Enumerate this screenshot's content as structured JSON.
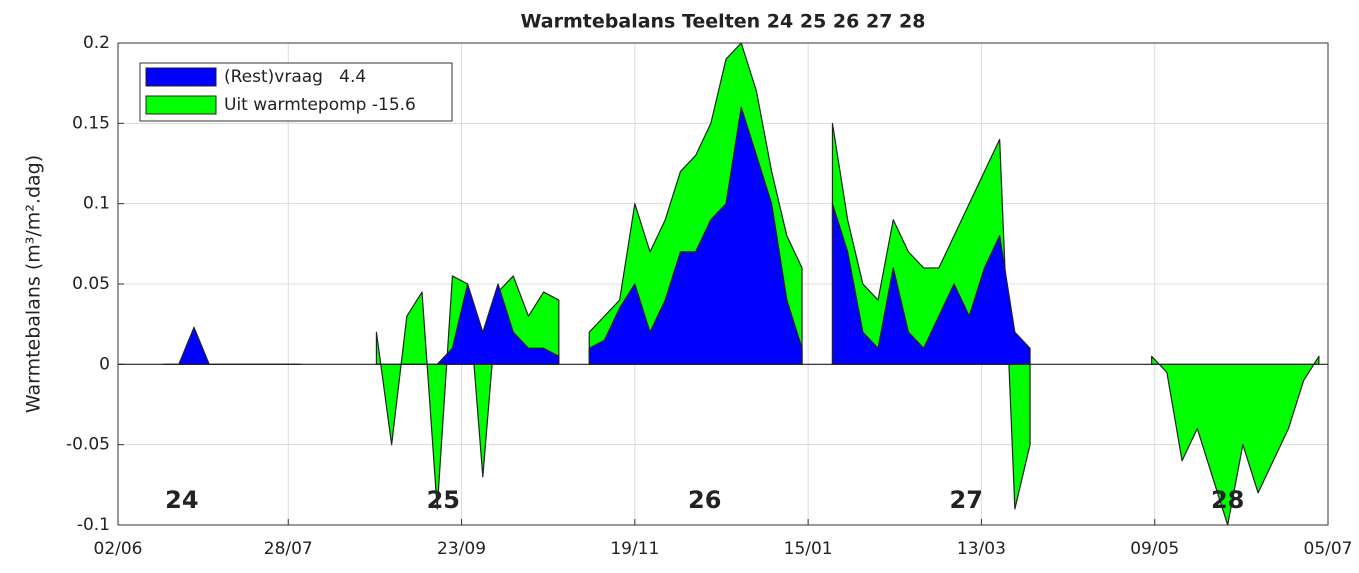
{
  "chart_data": {
    "type": "area",
    "title": "Warmtebalans Teelten 24  25  26  27  28",
    "ylabel": "Warmtebalans (m³/m².dag)",
    "xlim": [
      0,
      398
    ],
    "xticks": [
      {
        "value": 0,
        "label": "02/06"
      },
      {
        "value": 56,
        "label": "28/07"
      },
      {
        "value": 113,
        "label": "23/09"
      },
      {
        "value": 170,
        "label": "19/11"
      },
      {
        "value": 227,
        "label": "15/01"
      },
      {
        "value": 284,
        "label": "13/03"
      },
      {
        "value": 341,
        "label": "09/05"
      },
      {
        "value": 398,
        "label": "05/07"
      }
    ],
    "ylim": [
      -0.1,
      0.2
    ],
    "yticks": [
      -0.1,
      -0.05,
      0,
      0.05,
      0.1,
      0.15,
      0.2
    ],
    "grid": true,
    "legend": "upper left",
    "x": [
      0,
      5,
      10,
      15,
      20,
      25,
      30,
      35,
      40,
      45,
      50,
      55,
      60,
      65,
      70,
      75,
      80,
      85,
      90,
      95,
      100,
      105,
      110,
      115,
      120,
      125,
      130,
      135,
      140,
      145,
      150,
      155,
      160,
      165,
      170,
      175,
      180,
      185,
      190,
      195,
      200,
      205,
      210,
      215,
      220,
      225,
      230,
      235,
      240,
      245,
      250,
      255,
      260,
      265,
      270,
      275,
      280,
      285,
      290,
      295,
      300,
      305,
      310,
      315,
      320,
      325,
      330,
      335,
      340,
      345,
      350,
      355,
      360,
      365,
      370,
      375,
      380,
      385,
      390,
      395
    ],
    "series": [
      {
        "name": "Uit warmtepomp -15.6",
        "color": "#00ff00",
        "values": [
          null,
          null,
          null,
          0,
          0,
          0,
          0,
          0,
          0,
          0,
          0,
          0,
          0,
          null,
          null,
          null,
          null,
          0.02,
          -0.05,
          0.03,
          0.045,
          -0.09,
          0.055,
          0.05,
          -0.07,
          0.045,
          0.055,
          0.03,
          0.045,
          0.04,
          null,
          0.02,
          0.03,
          0.04,
          0.1,
          0.07,
          0.09,
          0.12,
          0.13,
          0.15,
          0.19,
          0.2,
          0.17,
          0.12,
          0.08,
          0.06,
          null,
          0.15,
          0.09,
          0.05,
          0.04,
          0.09,
          0.07,
          0.06,
          0.06,
          0.08,
          0.1,
          0.12,
          0.14,
          -0.09,
          -0.05,
          null,
          null,
          null,
          null,
          null,
          null,
          null,
          0.005,
          -0.005,
          -0.06,
          -0.04,
          -0.07,
          -0.1,
          -0.05,
          -0.08,
          -0.06,
          -0.04,
          -0.01,
          0.005
        ]
      },
      {
        "name": "(Rest)vraag   4.4",
        "color": "#0000ff",
        "values": [
          null,
          null,
          null,
          0,
          0,
          0.023,
          0,
          0,
          0,
          0,
          0,
          0,
          0,
          null,
          null,
          null,
          null,
          0,
          0,
          0,
          0,
          0,
          0.01,
          0.05,
          0.02,
          0.05,
          0.02,
          0.01,
          0.01,
          0.005,
          null,
          0.01,
          0.015,
          0.035,
          0.05,
          0.02,
          0.04,
          0.07,
          0.07,
          0.09,
          0.1,
          0.16,
          0.13,
          0.1,
          0.04,
          0.01,
          null,
          0.1,
          0.07,
          0.02,
          0.01,
          0.06,
          0.02,
          0.01,
          0.03,
          0.05,
          0.03,
          0.06,
          0.08,
          0.02,
          0.01,
          null,
          null,
          null,
          null,
          null,
          null,
          null,
          null,
          null,
          null,
          null,
          null,
          null,
          null,
          null,
          null,
          null,
          null,
          null
        ]
      }
    ],
    "annotations": [
      {
        "text": "24",
        "x": 21,
        "y": -0.085
      },
      {
        "text": "25",
        "x": 107,
        "y": -0.085
      },
      {
        "text": "26",
        "x": 193,
        "y": -0.085
      },
      {
        "text": "27",
        "x": 279,
        "y": -0.085
      },
      {
        "text": "28",
        "x": 365,
        "y": -0.085
      }
    ]
  }
}
